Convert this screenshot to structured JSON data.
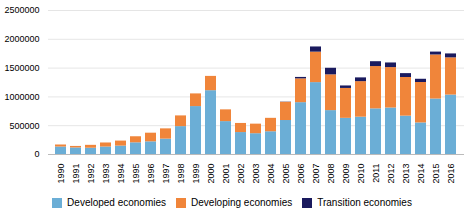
{
  "chart_data": {
    "type": "bar",
    "stacked": true,
    "categories": [
      "1990",
      "1991",
      "1992",
      "1993",
      "1994",
      "1995",
      "1996",
      "1997",
      "1998",
      "1999",
      "2000",
      "2001",
      "2002",
      "2003",
      "2004",
      "2005",
      "2006",
      "2007",
      "2008",
      "2009",
      "2010",
      "2011",
      "2012",
      "2013",
      "2014",
      "2015",
      "2016"
    ],
    "series": [
      {
        "name": "Developed economies",
        "color": "#6BAED6",
        "values": [
          130000,
          114000,
          109000,
          130000,
          146000,
          203000,
          220000,
          267000,
          484000,
          832000,
          1108000,
          571000,
          381000,
          361000,
          395000,
          590000,
          900000,
          1248000,
          762000,
          628000,
          648000,
          792000,
          807000,
          666000,
          548000,
          963000,
          1032000
        ]
      },
      {
        "name": "Developing economies",
        "color": "#F0853A",
        "values": [
          35000,
          26000,
          50000,
          70000,
          87000,
          105000,
          150000,
          178000,
          186000,
          220000,
          248000,
          204000,
          158000,
          166000,
          233000,
          316000,
          413000,
          529000,
          621000,
          519000,
          617000,
          735000,
          702000,
          671000,
          702000,
          765000,
          646000
        ]
      },
      {
        "name": "Transition economies",
        "color": "#1a1a5e",
        "values": [
          0,
          0,
          0,
          0,
          0,
          0,
          0,
          0,
          0,
          0,
          0,
          0,
          0,
          0,
          0,
          4000,
          25000,
          90000,
          114000,
          43000,
          65000,
          84000,
          80000,
          67000,
          56000,
          50000,
          68000
        ]
      }
    ],
    "ylim": [
      0,
      2500000
    ],
    "yticks": [
      0,
      500000,
      1000000,
      1500000,
      2000000,
      2500000
    ],
    "grid": true,
    "legend": "bottom"
  }
}
